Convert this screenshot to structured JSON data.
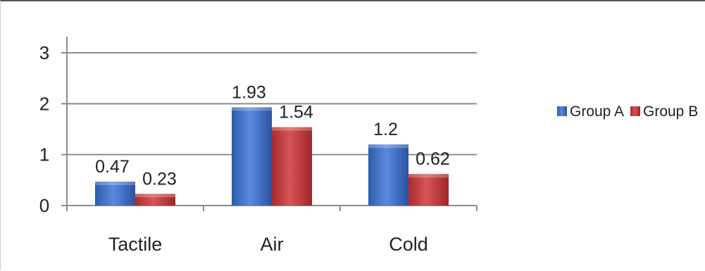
{
  "chart_data": {
    "type": "bar",
    "categories": [
      "Tactile",
      "Air",
      "Cold"
    ],
    "series": [
      {
        "name": "Group A",
        "values": [
          0.47,
          1.93,
          1.2
        ],
        "labels": [
          "0.47",
          "1.93",
          "1.2"
        ],
        "color": "#3f6fc6"
      },
      {
        "name": "Group B",
        "values": [
          0.23,
          1.54,
          0.62
        ],
        "labels": [
          "0.23",
          "1.54",
          "0.62"
        ],
        "color": "#c0393b"
      }
    ],
    "yticks": [
      "0",
      "1",
      "2",
      "3"
    ],
    "ylim": [
      0,
      3
    ],
    "grid": true,
    "legend": "right"
  }
}
